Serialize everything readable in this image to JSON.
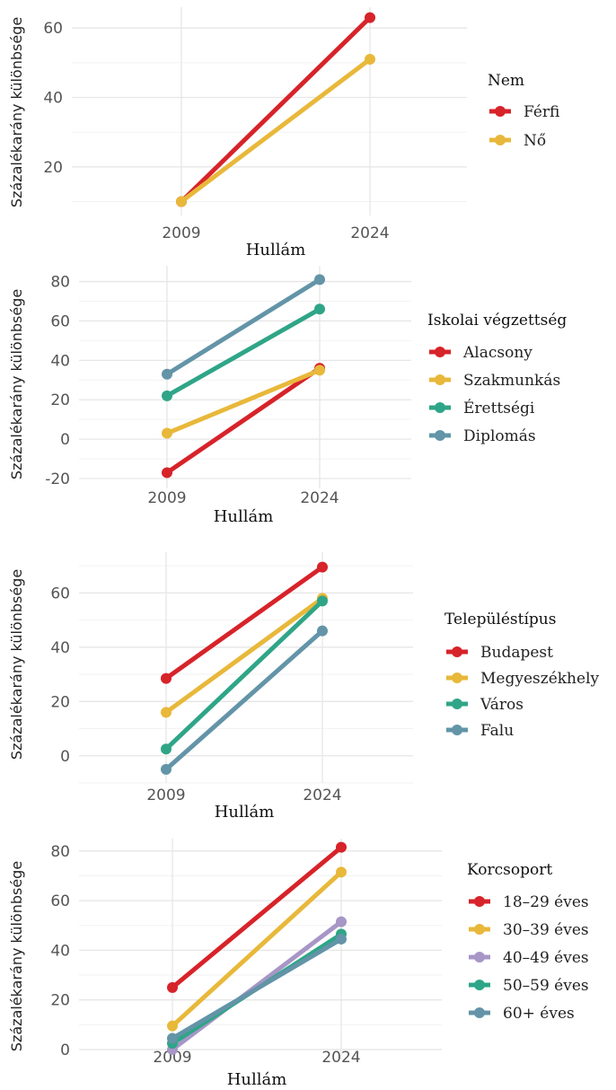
{
  "chart_data": [
    {
      "type": "line",
      "xlabel": "Hullám",
      "ylabel": "Százalékarány különbsége",
      "x": [
        "2009",
        "2024"
      ],
      "yticks": [
        20,
        40,
        60
      ],
      "ylim": [
        6,
        66
      ],
      "grid": true,
      "legend_title": "Nem",
      "legend_position": "right",
      "series": [
        {
          "name": "Férfi",
          "color": "#d7232a",
          "values": [
            10,
            63
          ]
        },
        {
          "name": "Nő",
          "color": "#e8b83a",
          "values": [
            10,
            51
          ]
        }
      ]
    },
    {
      "type": "line",
      "xlabel": "Hullám",
      "ylabel": "Százalékarány különbsége",
      "x": [
        "2009",
        "2024"
      ],
      "yticks": [
        -20,
        0,
        20,
        40,
        60,
        80
      ],
      "ylim": [
        -25,
        88
      ],
      "grid": true,
      "legend_title": "Iskolai végzettség",
      "legend_position": "right",
      "series": [
        {
          "name": "Alacsony",
          "color": "#d7232a",
          "values": [
            -17,
            36
          ]
        },
        {
          "name": "Szakmunkás",
          "color": "#e8b83a",
          "values": [
            3,
            35
          ]
        },
        {
          "name": "Érettségi",
          "color": "#2fa587",
          "values": [
            22,
            66
          ]
        },
        {
          "name": "Diplomás",
          "color": "#6394a8",
          "values": [
            33,
            81
          ]
        }
      ]
    },
    {
      "type": "line",
      "xlabel": "Hullám",
      "ylabel": "Százalékarány különbsége",
      "x": [
        "2009",
        "2024"
      ],
      "yticks": [
        0,
        20,
        40,
        60
      ],
      "ylim": [
        -10,
        75
      ],
      "grid": true,
      "legend_title": "Településtípus",
      "legend_position": "right",
      "series": [
        {
          "name": "Budapest",
          "color": "#d7232a",
          "values": [
            28.5,
            69.5
          ]
        },
        {
          "name": "Megyeszékhely",
          "color": "#e8b83a",
          "values": [
            16,
            58
          ]
        },
        {
          "name": "Város",
          "color": "#2fa587",
          "values": [
            2.5,
            57
          ]
        },
        {
          "name": "Falu",
          "color": "#6394a8",
          "values": [
            -5,
            46
          ]
        }
      ]
    },
    {
      "type": "line",
      "xlabel": "Hullám",
      "ylabel": "Százalékarány különbsége",
      "x": [
        "2009",
        "2024"
      ],
      "yticks": [
        0,
        20,
        40,
        60,
        80
      ],
      "ylim": [
        -4,
        85
      ],
      "grid": true,
      "legend_title": "Korcsoport",
      "legend_position": "right",
      "series": [
        {
          "name": "18–29 éves",
          "color": "#d7232a",
          "values": [
            25,
            81.5
          ]
        },
        {
          "name": "30–39 éves",
          "color": "#e8b83a",
          "values": [
            9.5,
            71.5
          ]
        },
        {
          "name": "40–49 éves",
          "color": "#a796c6",
          "values": [
            0,
            51.5
          ]
        },
        {
          "name": "50–59 éves",
          "color": "#2fa587",
          "values": [
            2.5,
            46.5
          ]
        },
        {
          "name": "60+ éves",
          "color": "#6394a8",
          "values": [
            4.5,
            44.5
          ]
        }
      ]
    }
  ]
}
